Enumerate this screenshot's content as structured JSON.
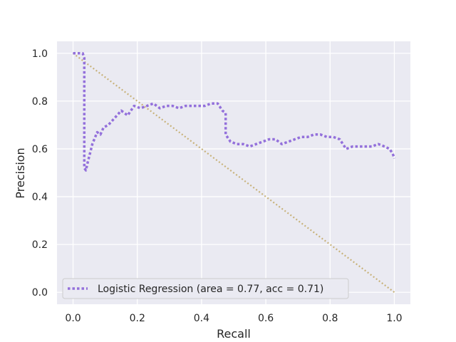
{
  "chart_data": {
    "type": "line",
    "title": "",
    "xlabel": "Recall",
    "ylabel": "Precision",
    "xlim": [
      -0.05,
      1.05
    ],
    "ylim": [
      -0.05,
      1.05
    ],
    "xticks": [
      0.0,
      0.2,
      0.4,
      0.6,
      0.8,
      1.0
    ],
    "xtick_labels": [
      "0.0",
      "0.2",
      "0.4",
      "0.6",
      "0.8",
      "1.0"
    ],
    "yticks": [
      0.0,
      0.2,
      0.4,
      0.6,
      0.8,
      1.0
    ],
    "ytick_labels": [
      "0.0",
      "0.2",
      "0.4",
      "0.6",
      "0.8",
      "1.0"
    ],
    "grid": true,
    "legend_position": "lower-left",
    "series": [
      {
        "name": "Logistic Regression (area = 0.77, acc = 0.71)",
        "color": "#9370DB",
        "style": "dotted",
        "x": [
          0.0,
          0.02,
          0.03,
          0.035,
          0.035,
          0.035,
          0.04,
          0.045,
          0.06,
          0.075,
          0.085,
          0.095,
          0.11,
          0.13,
          0.15,
          0.17,
          0.19,
          0.21,
          0.23,
          0.25,
          0.27,
          0.29,
          0.31,
          0.33,
          0.35,
          0.37,
          0.39,
          0.41,
          0.43,
          0.45,
          0.465,
          0.475,
          0.475,
          0.49,
          0.51,
          0.53,
          0.55,
          0.57,
          0.59,
          0.61,
          0.63,
          0.65,
          0.67,
          0.69,
          0.71,
          0.73,
          0.75,
          0.77,
          0.79,
          0.81,
          0.83,
          0.85,
          0.87,
          0.89,
          0.91,
          0.93,
          0.95,
          0.97,
          0.985,
          0.995,
          1.0
        ],
        "y": [
          1.0,
          1.0,
          1.0,
          0.98,
          0.75,
          0.52,
          0.51,
          0.54,
          0.62,
          0.67,
          0.66,
          0.69,
          0.7,
          0.73,
          0.76,
          0.74,
          0.78,
          0.77,
          0.78,
          0.79,
          0.77,
          0.78,
          0.78,
          0.77,
          0.78,
          0.78,
          0.78,
          0.78,
          0.79,
          0.79,
          0.76,
          0.75,
          0.66,
          0.63,
          0.62,
          0.62,
          0.61,
          0.62,
          0.63,
          0.64,
          0.64,
          0.62,
          0.63,
          0.64,
          0.65,
          0.65,
          0.66,
          0.66,
          0.65,
          0.65,
          0.64,
          0.6,
          0.61,
          0.61,
          0.61,
          0.61,
          0.62,
          0.61,
          0.6,
          0.58,
          0.56
        ]
      },
      {
        "name": "",
        "color": "#C8B27A",
        "style": "dotted",
        "x": [
          0.0,
          1.0
        ],
        "y": [
          1.0,
          0.0
        ]
      }
    ]
  }
}
